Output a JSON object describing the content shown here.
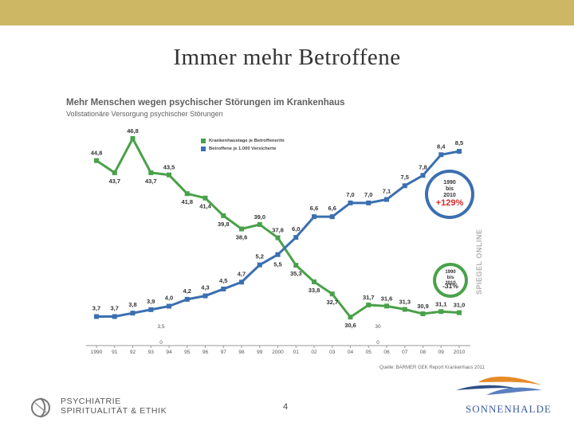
{
  "slide": {
    "title": "Immer mehr Betroffene",
    "page_number": "4"
  },
  "footer": {
    "left_logo_line1": "PSYCHIATRIE",
    "left_logo_line2": "SPIRITUALITÄT & ETHIK",
    "right_logo_text": "SONNENHALDE"
  },
  "chart_data": {
    "type": "line",
    "title": "Mehr Menschen wegen psychischer Störungen im Krankenhaus",
    "subtitle": "Vollstationäre Versorgung psychischer Störungen",
    "source": "Quelle: BARMER GEK Report Krankenhaus 2011",
    "watermark": "SPIEGEL ONLINE",
    "categories": [
      "1990",
      "91",
      "92",
      "93",
      "94",
      "95",
      "96",
      "97",
      "98",
      "99",
      "2000",
      "01",
      "02",
      "03",
      "04",
      "05",
      "06",
      "07",
      "08",
      "09",
      "2010"
    ],
    "series": [
      {
        "name": "Krankenhaustage je Betroffener/m",
        "color": "#4aa14a",
        "values": [
          44.8,
          43.7,
          46.8,
          43.7,
          43.5,
          41.8,
          41.4,
          39.8,
          38.6,
          39.0,
          37.8,
          35.3,
          33.8,
          32.7,
          30.6,
          31.7,
          31.6,
          31.3,
          30.9,
          31.1,
          31.0
        ],
        "labels": [
          "44,8",
          "43,7",
          "46,8",
          "43,7",
          "43,5",
          "41,8",
          "41,4",
          "39,8",
          "38,6",
          "39,0",
          "37,8",
          "35,3",
          "33,8",
          "32,7",
          "30,6",
          "31,7",
          "31,6",
          "31,3",
          "30,9",
          "31,1",
          "31,0"
        ],
        "axis_ticks": [
          "30",
          "0"
        ]
      },
      {
        "name": "Betroffene je 1.000 Versicherte",
        "color": "#3b6fb0",
        "values": [
          3.7,
          3.7,
          3.8,
          3.9,
          4.0,
          4.2,
          4.3,
          4.5,
          4.7,
          5.2,
          5.5,
          6.0,
          6.6,
          6.6,
          7.0,
          7.0,
          7.1,
          7.5,
          7.8,
          8.4,
          8.5
        ],
        "labels": [
          "3,7",
          "3,7",
          "3,8",
          "3,9",
          "4,0",
          "4,2",
          "4,3",
          "4,5",
          "4,7",
          "5,2",
          "5,5",
          "6,0",
          "6,6",
          "6,6",
          "7,0",
          "7,0",
          "7,1",
          "7,5",
          "7,8",
          "8,4",
          "8,5"
        ],
        "axis_ticks": [
          "3,5",
          "0"
        ]
      }
    ],
    "badges": [
      {
        "line1": "1990",
        "line2": "bis",
        "line3": "2010",
        "value": "+129%",
        "color": "#3b6fb0"
      },
      {
        "line1": "1990",
        "line2": "bis",
        "line3": "2010",
        "value": "-31%",
        "color": "#4aa14a"
      }
    ]
  }
}
